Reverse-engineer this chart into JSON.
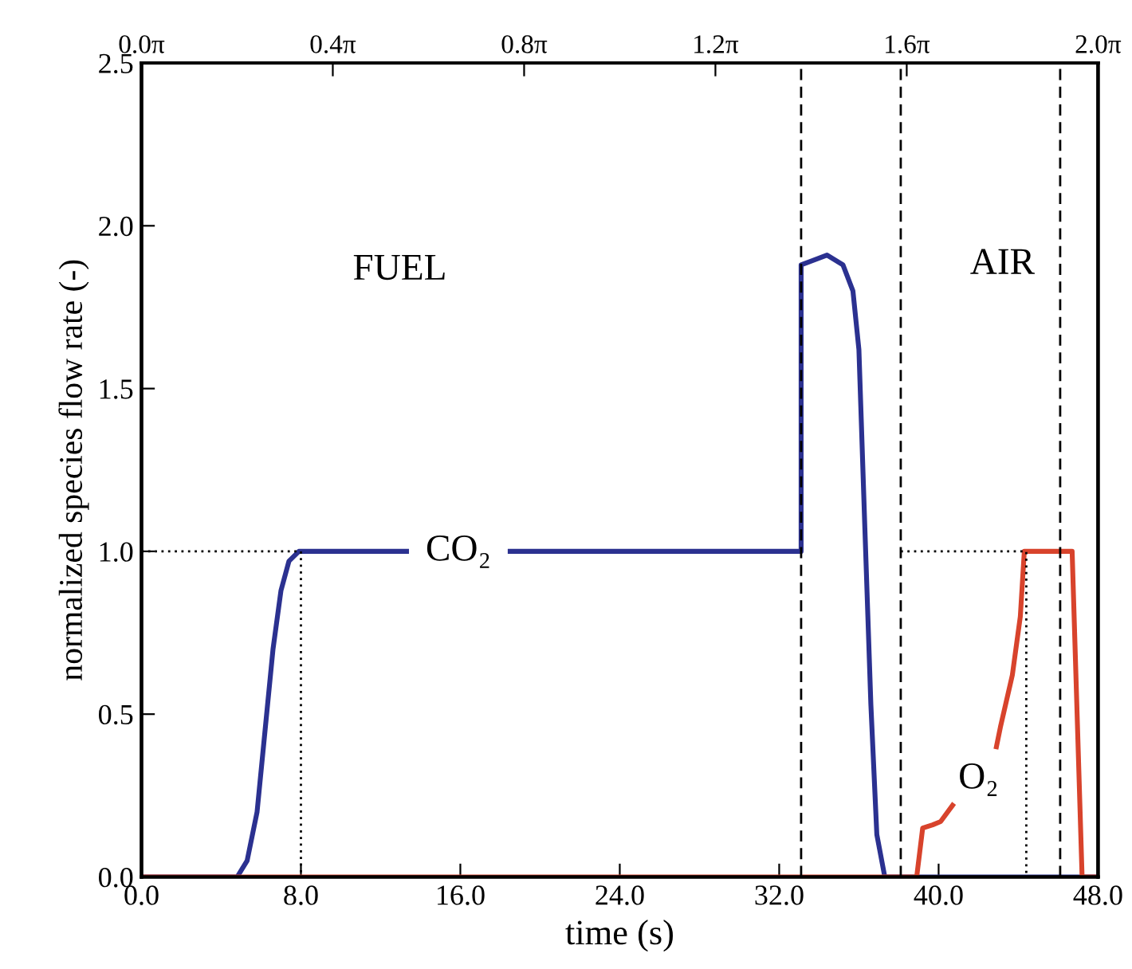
{
  "chart_data": {
    "type": "line",
    "xlabel": "time (s)",
    "ylabel": "normalized species flow rate (-)",
    "xlim": [
      0,
      48
    ],
    "xticks": [
      {
        "value": 0,
        "label": "0.0"
      },
      {
        "value": 8,
        "label": "8.0"
      },
      {
        "value": 16,
        "label": "16.0"
      },
      {
        "value": 24,
        "label": "24.0"
      },
      {
        "value": 32,
        "label": "32.0"
      },
      {
        "value": 40,
        "label": "40.0"
      },
      {
        "value": 48,
        "label": "48.0"
      }
    ],
    "ylim": [
      0,
      2.5
    ],
    "yticks": [
      {
        "value": 0,
        "label": "0.0"
      },
      {
        "value": 0.5,
        "label": "0.5"
      },
      {
        "value": 1.0,
        "label": "1.0"
      },
      {
        "value": 1.5,
        "label": "1.5"
      },
      {
        "value": 2.0,
        "label": "2.0"
      },
      {
        "value": 2.5,
        "label": "2.5"
      }
    ],
    "x2lim": [
      0,
      6.2832
    ],
    "x2ticks": [
      {
        "value": 0,
        "label": "0.0π"
      },
      {
        "value": 1.2566,
        "label": "0.4π"
      },
      {
        "value": 2.5133,
        "label": "0.8π"
      },
      {
        "value": 3.7699,
        "label": "1.2π"
      },
      {
        "value": 5.0265,
        "label": "1.6π"
      },
      {
        "value": 6.2832,
        "label": "2.0π"
      }
    ],
    "grid": false,
    "legend": false,
    "marker": "none",
    "series": [
      {
        "color": "#2b3190",
        "line_style": "solid",
        "x": [
          0,
          4.8,
          5.3,
          5.8,
          6.2,
          6.6,
          7.0,
          7.4,
          7.9,
          13.3,
          15.9,
          18.5,
          33.1,
          33.1,
          34.4,
          35.2,
          35.7,
          36.0,
          36.3,
          36.6,
          36.9,
          37.3,
          48
        ],
        "values": [
          0,
          0,
          0.05,
          0.2,
          0.45,
          0.7,
          0.88,
          0.97,
          1.0,
          1.0,
          null,
          1.0,
          1.0,
          1.88,
          1.91,
          1.88,
          1.8,
          1.62,
          1.07,
          0.53,
          0.13,
          0,
          0
        ]
      },
      {
        "color": "#d8432c",
        "line_style": "solid",
        "x": [
          0,
          38.9,
          39.2,
          39.7,
          40.1,
          40.7,
          41.8,
          42.9,
          43.1,
          43.7,
          44.1,
          44.3,
          46.7,
          47.2,
          48
        ],
        "values": [
          0,
          0,
          0.15,
          0.16,
          0.17,
          0.22,
          null,
          0.4,
          0.46,
          0.62,
          0.8,
          1.0,
          1.0,
          0,
          0
        ]
      },
      {
        "color": "#000000",
        "line_style": "dotted",
        "x": [
          0,
          8,
          8
        ],
        "values": [
          1,
          1,
          0
        ]
      },
      {
        "color": "#000000",
        "line_style": "dotted",
        "x": [
          38.1,
          44.4,
          44.4
        ],
        "values": [
          1,
          1,
          0
        ]
      }
    ],
    "ref_lines": [
      {
        "axis": "x",
        "value": 33.1,
        "color": "#000000",
        "line_style": "dashed"
      },
      {
        "axis": "x",
        "value": 38.1,
        "color": "#000000",
        "line_style": "dashed"
      },
      {
        "axis": "x",
        "value": 46.1,
        "color": "#000000",
        "line_style": "dashed"
      }
    ],
    "annotations": [
      "FUEL",
      "AIR",
      {
        "text": "CO₂",
        "x": 15.9,
        "y": 1.0
      },
      "O₂"
    ]
  }
}
